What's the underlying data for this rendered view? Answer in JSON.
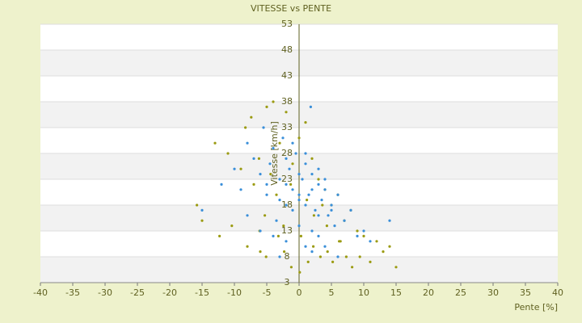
{
  "chart_data": {
    "type": "scatter",
    "title": "VITESSE vs PENTE",
    "x_label": "Pente [%]",
    "y_label": "Vitesse [km/h]",
    "xlim": [
      -40,
      40
    ],
    "xticks": [
      -40,
      -35,
      -30,
      -25,
      -20,
      -15,
      -10,
      -5,
      0,
      5,
      10,
      15,
      20,
      25,
      30,
      35,
      40
    ],
    "ylim": [
      3,
      53
    ],
    "yticks": [
      3,
      8,
      13,
      18,
      23,
      28,
      33,
      38,
      43,
      48,
      53
    ],
    "grid": true,
    "series": [
      {
        "color": "#9b9b12",
        "x": [
          -15.8,
          -15,
          -13,
          -12.3,
          -11,
          -10.4,
          -9,
          -8,
          -8.3,
          -7,
          -7.4,
          -6,
          -6.2,
          -5,
          -5.3,
          -5.1,
          -4,
          -4.4,
          -3,
          -3.2,
          -2,
          -2.3,
          -1,
          -1.2,
          0,
          0.3,
          1,
          1.4,
          2,
          2.2,
          3,
          3.3,
          4,
          4.4,
          5,
          5.2,
          6,
          6.4,
          7,
          7.3,
          8,
          8.2,
          9,
          9.4,
          10,
          11,
          12,
          13,
          14,
          15,
          -3.5,
          -1.3,
          1.2,
          3.6,
          -6.1,
          -2.4,
          2.3,
          6.2,
          0.1,
          4.3
        ],
        "values": [
          18,
          15,
          30,
          12,
          28,
          14,
          25,
          10,
          33,
          22,
          35,
          9,
          27,
          37,
          16,
          8,
          38,
          24,
          30,
          12,
          36,
          9,
          26,
          6,
          31,
          12,
          34,
          7,
          27,
          10,
          23,
          8,
          21,
          9,
          18,
          7,
          20,
          11,
          15,
          8,
          17,
          6,
          13,
          8,
          12,
          7,
          11,
          9,
          10,
          6,
          20,
          22,
          19,
          18,
          13,
          14,
          16,
          11,
          5,
          14
        ]
      },
      {
        "color": "#3a8fd9",
        "x": [
          -15,
          -12,
          -10,
          -9,
          -8,
          -7,
          -6,
          -5.5,
          -5,
          -4.5,
          -4,
          -3.5,
          -3,
          -2.5,
          -2,
          -1.5,
          -1,
          -0.5,
          0,
          0.5,
          1,
          1.5,
          2,
          2.5,
          3,
          3.5,
          4,
          4.5,
          5,
          5.5,
          6,
          7,
          8,
          9,
          10,
          11,
          14,
          -3,
          -2,
          -1,
          0,
          1,
          2,
          3,
          -4,
          -2,
          0,
          2,
          4,
          -1,
          1,
          3,
          -3,
          0,
          2,
          5,
          -6,
          -2,
          1,
          4,
          1.8,
          -8,
          6,
          -5,
          3
        ],
        "values": [
          17,
          22,
          25,
          21,
          30,
          27,
          24,
          33,
          20,
          26,
          29,
          15,
          23,
          31,
          18,
          25,
          21,
          28,
          19,
          23,
          26,
          20,
          24,
          17,
          22,
          19,
          21,
          16,
          18,
          14,
          20,
          15,
          17,
          12,
          13,
          11,
          15,
          19,
          22,
          17,
          24,
          18,
          21,
          16,
          12,
          27,
          14,
          13,
          23,
          30,
          10,
          25,
          8,
          20,
          9,
          17,
          13,
          11,
          28,
          10,
          37,
          16,
          8,
          22,
          12
        ]
      }
    ]
  }
}
